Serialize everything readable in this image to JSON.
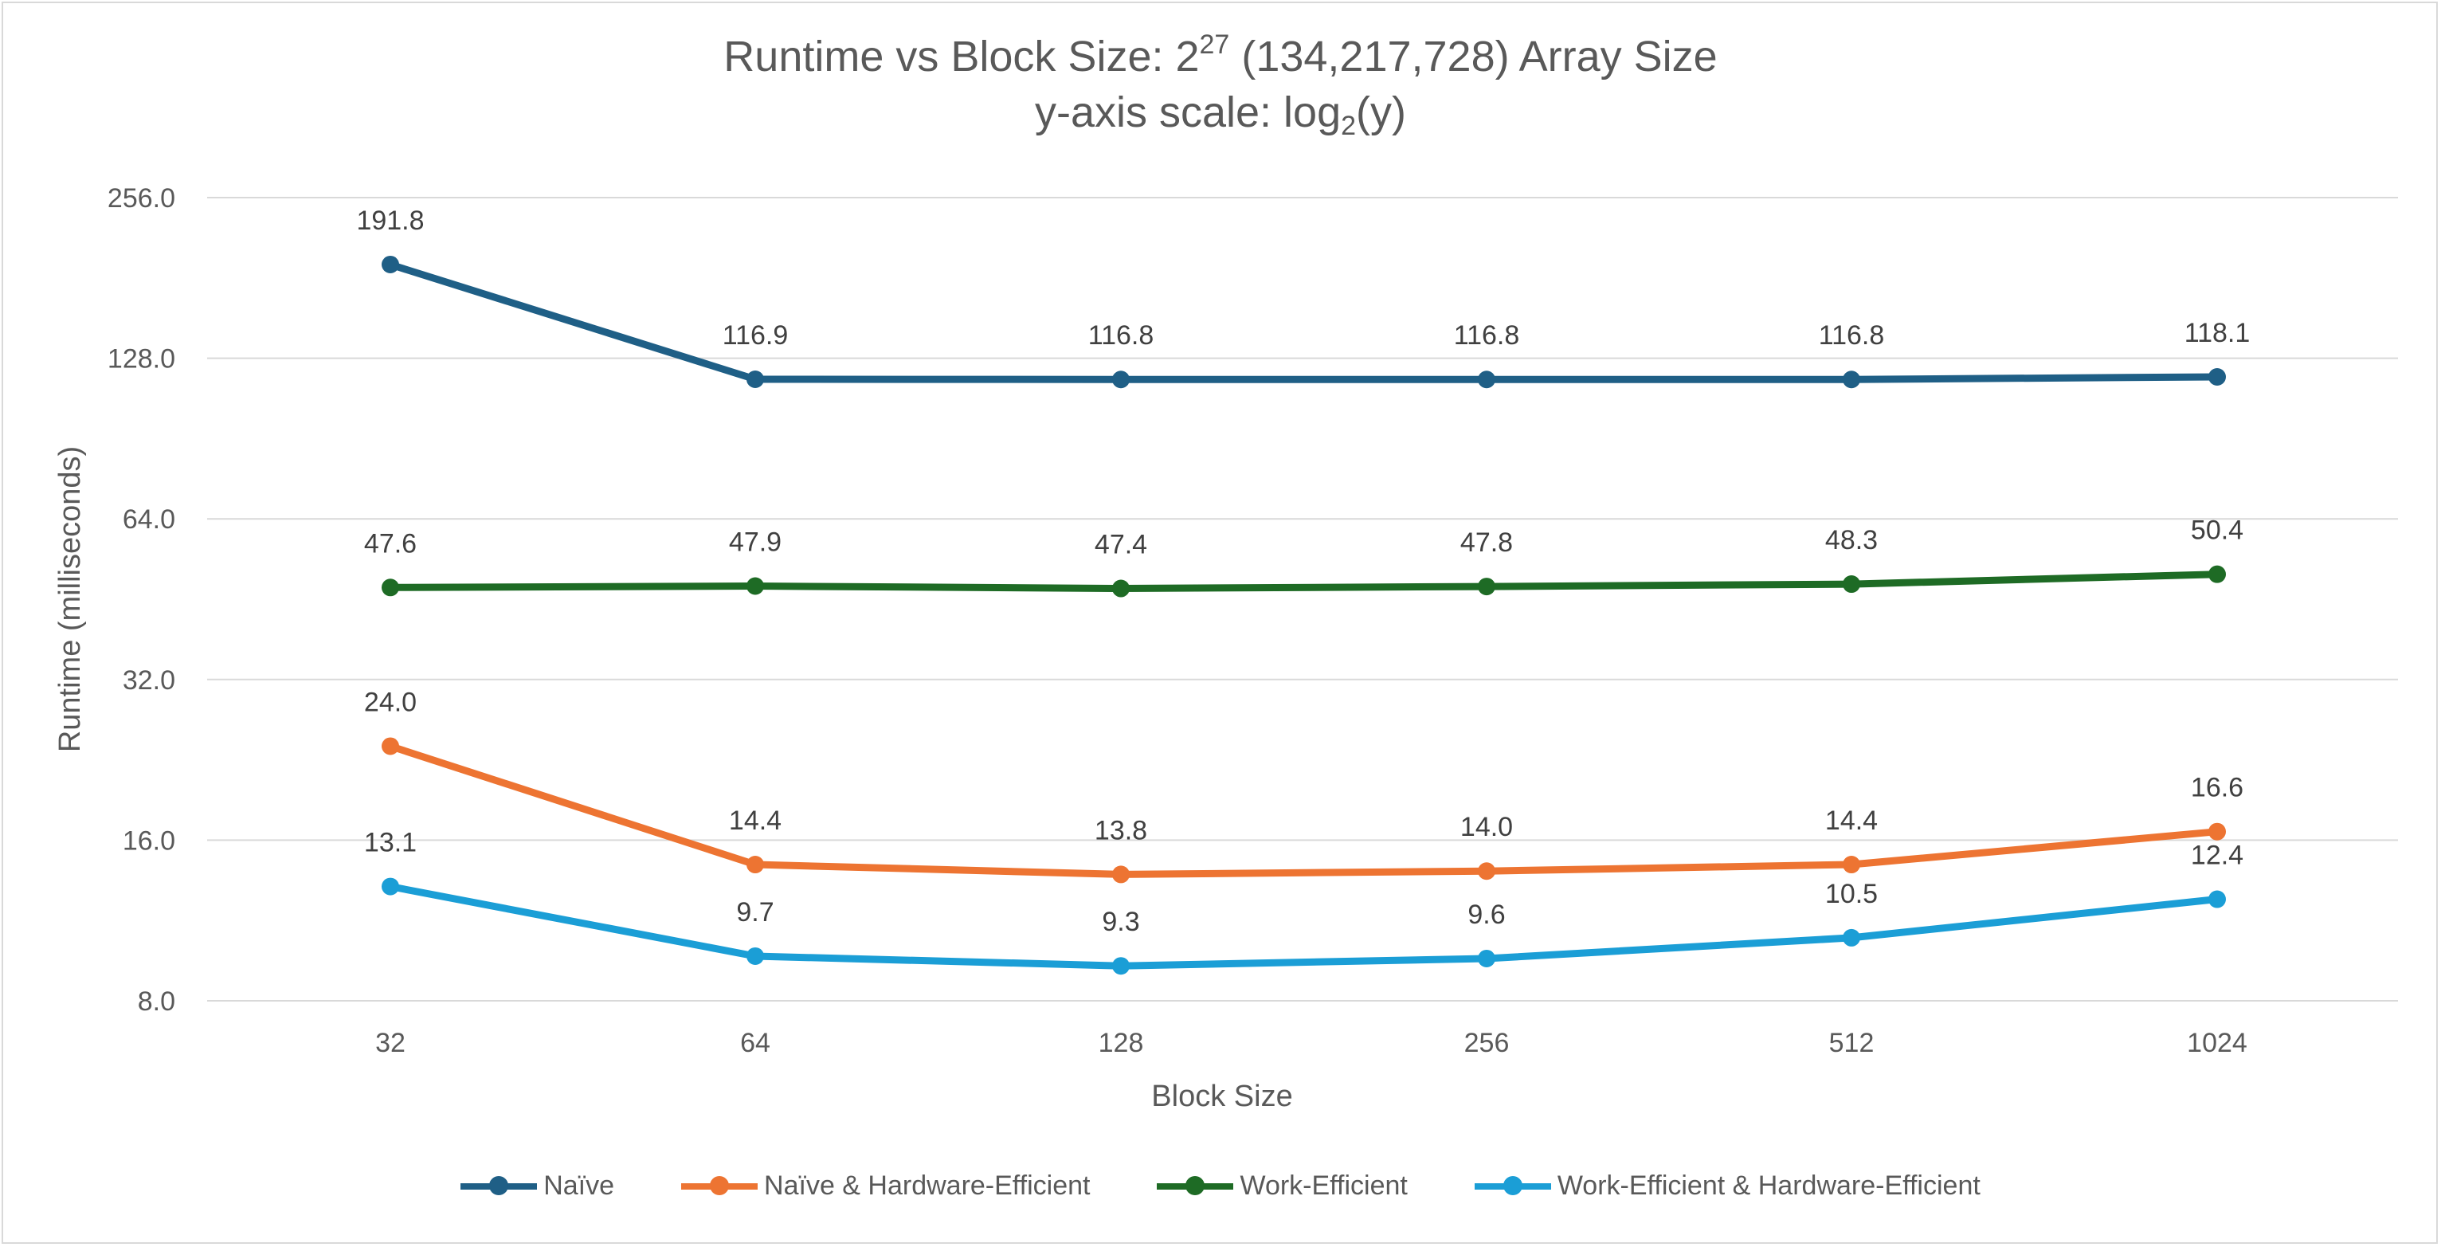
{
  "title": {
    "line1_before": "Runtime vs Block Size: 2",
    "line1_sup": "27",
    "line1_after": " (134,217,728)  Array Size",
    "line2_before": "y-axis scale: log",
    "line2_sub": "2",
    "line2_after": "(y)"
  },
  "chart_data": {
    "type": "line",
    "categories": [
      "32",
      "64",
      "128",
      "256",
      "512",
      "1024"
    ],
    "xlabel": "Block Size",
    "ylabel": "Runtime (milliseconds)",
    "yscale": "log2",
    "ylim": [
      8,
      256
    ],
    "yticks": [
      "8.0",
      "16.0",
      "32.0",
      "64.0",
      "128.0",
      "256.0"
    ],
    "grid": true,
    "legend_position": "bottom",
    "series": [
      {
        "name": "Naïve",
        "color": "#1f5f86",
        "values": [
          191.8,
          116.9,
          116.8,
          116.8,
          116.8,
          118.1
        ],
        "labels": [
          "191.8",
          "116.9",
          "116.8",
          "116.8",
          "116.8",
          "118.1"
        ]
      },
      {
        "name": "Naïve & Hardware-Efficient",
        "color": "#ed7432",
        "values": [
          24.0,
          14.4,
          13.8,
          14.0,
          14.4,
          16.6
        ],
        "labels": [
          "24.0",
          "14.4",
          "13.8",
          "14.0",
          "14.4",
          "16.6"
        ]
      },
      {
        "name": "Work-Efficient",
        "color": "#1e6b25",
        "values": [
          47.6,
          47.9,
          47.4,
          47.8,
          48.3,
          50.4
        ],
        "labels": [
          "47.6",
          "47.9",
          "47.4",
          "47.8",
          "48.3",
          "50.4"
        ]
      },
      {
        "name": "Work-Efficient & Hardware-Efficient",
        "color": "#1b9ed6",
        "values": [
          13.1,
          9.7,
          9.3,
          9.6,
          10.5,
          12.4
        ],
        "labels": [
          "13.1",
          "9.7",
          "9.3",
          "9.6",
          "10.5",
          "12.4"
        ]
      }
    ]
  }
}
